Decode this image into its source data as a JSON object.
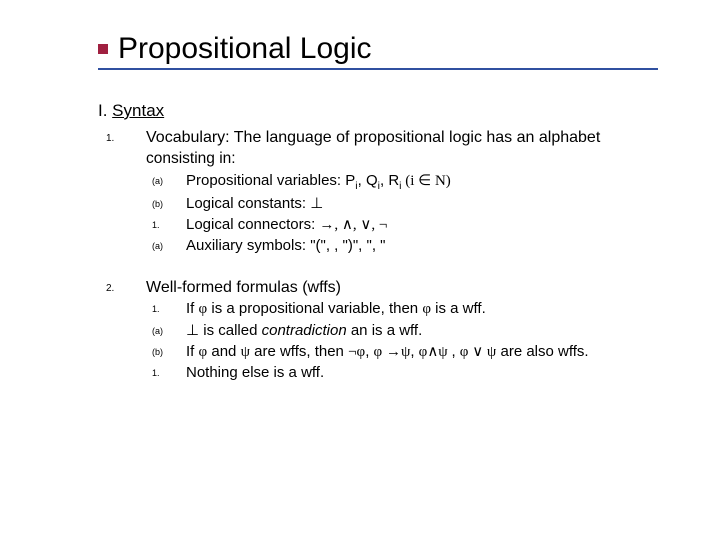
{
  "colors": {
    "bullet": "#a02040",
    "underline": "#3050a0",
    "background": "#ffffff",
    "text": "#000000"
  },
  "typography": {
    "title_fontsize": 30,
    "body_fontsize": 15.5,
    "sub_fontsize": 15,
    "section_header_fontsize": 17,
    "marker_lvl1_fontsize": 10,
    "marker_lvl2_fontsize": 9,
    "font_family": "Verdana"
  },
  "title": "Propositional Logic",
  "section_header_prefix": "I. ",
  "section_header_text": "Syntax",
  "item1": {
    "marker": "1.",
    "lead_term": "Vocabulary:",
    "lead_rest": " The language of propositional logic has an alphabet",
    "continuation": "consisting in:",
    "subitems": [
      {
        "marker": "(a)",
        "label": "Propositional variables:  ",
        "rest": "P",
        "sub1": "i",
        "mid1": ", Q",
        "sub2": "i",
        "mid2": ", R",
        "sub3": "i",
        "tail": "  (i ∈ N)"
      },
      {
        "marker": "(b)",
        "label": "Logical constants: ",
        "rest": "⊥"
      },
      {
        "marker": "1.",
        "label": "Logical connectors: ",
        "rest": "→, ∧, ∨, ¬"
      },
      {
        "marker": "(a)",
        "label": "Auxiliary symbols: ",
        "rest": "\"(\", , \")\", \", \""
      }
    ]
  },
  "item2": {
    "marker": "2.",
    "lead": "Well-formed formulas (wffs)",
    "subitems": [
      {
        "marker": "1.",
        "pre": "If ",
        "phi1": "φ",
        "mid": " is a propositional variable, then ",
        "phi2": "φ",
        "post": " is a wff."
      },
      {
        "marker": "(a)",
        "pre": "",
        "sym": "⊥",
        "mid": " is called ",
        "ital": "contradiction",
        "post": " an is a wff."
      },
      {
        "marker": "(b)",
        "pre": "If ",
        "phi1": "φ",
        "mid1": " and ",
        "psi1": "ψ",
        "mid2": " are wffs, then ",
        "f1": "¬φ",
        "c1": ", ",
        "f2": "φ →ψ",
        "c2": ", ",
        "f3": "φ∧ψ ",
        "c3": ", ",
        "f4": "φ ∨ ψ",
        "post": " are also wffs."
      },
      {
        "marker": "1.",
        "text": "Nothing else is a wff."
      }
    ]
  }
}
